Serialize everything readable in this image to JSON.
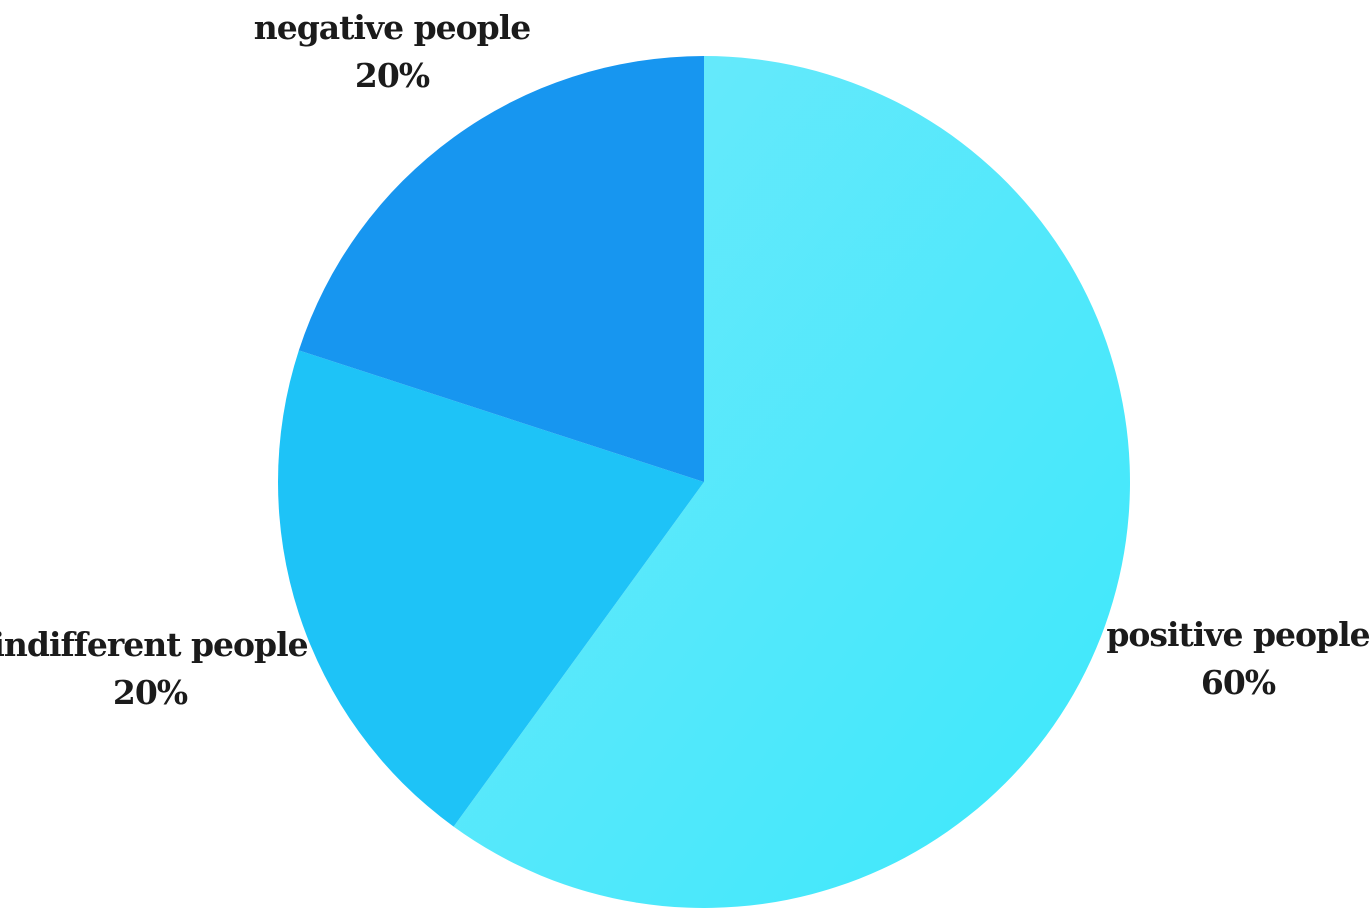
{
  "chart_data": {
    "type": "pie",
    "slices": [
      {
        "label": "positive people",
        "value": 60,
        "value_label": "60%",
        "color": "#56e6fb"
      },
      {
        "label": "indifferent people",
        "value": 20,
        "value_label": "20%",
        "color": "#1ec3f7"
      },
      {
        "label": "negative people",
        "value": 20,
        "value_label": "20%",
        "color": "#1796f0"
      }
    ],
    "start_angle": "12 o'clock",
    "direction": "clockwise",
    "legend": "none",
    "labels_placement": "outside slices"
  }
}
